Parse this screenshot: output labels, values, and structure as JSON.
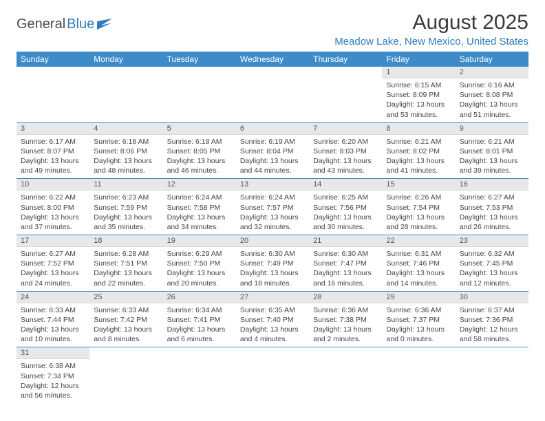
{
  "logo": {
    "text1": "General",
    "text2": "Blue"
  },
  "title": "August 2025",
  "location": "Meadow Lake, New Mexico, United States",
  "colors": {
    "header_bg": "#3d8bc9",
    "header_text": "#ffffff",
    "daynum_bg": "#e8e8e8",
    "accent": "#2e7cc0",
    "body_text": "#444444"
  },
  "day_labels": [
    "Sunday",
    "Monday",
    "Tuesday",
    "Wednesday",
    "Thursday",
    "Friday",
    "Saturday"
  ],
  "weeks": [
    [
      null,
      null,
      null,
      null,
      null,
      {
        "n": "1",
        "sr": "Sunrise: 6:15 AM",
        "ss": "Sunset: 8:09 PM",
        "dl": "Daylight: 13 hours and 53 minutes."
      },
      {
        "n": "2",
        "sr": "Sunrise: 6:16 AM",
        "ss": "Sunset: 8:08 PM",
        "dl": "Daylight: 13 hours and 51 minutes."
      }
    ],
    [
      {
        "n": "3",
        "sr": "Sunrise: 6:17 AM",
        "ss": "Sunset: 8:07 PM",
        "dl": "Daylight: 13 hours and 49 minutes."
      },
      {
        "n": "4",
        "sr": "Sunrise: 6:18 AM",
        "ss": "Sunset: 8:06 PM",
        "dl": "Daylight: 13 hours and 48 minutes."
      },
      {
        "n": "5",
        "sr": "Sunrise: 6:18 AM",
        "ss": "Sunset: 8:05 PM",
        "dl": "Daylight: 13 hours and 46 minutes."
      },
      {
        "n": "6",
        "sr": "Sunrise: 6:19 AM",
        "ss": "Sunset: 8:04 PM",
        "dl": "Daylight: 13 hours and 44 minutes."
      },
      {
        "n": "7",
        "sr": "Sunrise: 6:20 AM",
        "ss": "Sunset: 8:03 PM",
        "dl": "Daylight: 13 hours and 43 minutes."
      },
      {
        "n": "8",
        "sr": "Sunrise: 6:21 AM",
        "ss": "Sunset: 8:02 PM",
        "dl": "Daylight: 13 hours and 41 minutes."
      },
      {
        "n": "9",
        "sr": "Sunrise: 6:21 AM",
        "ss": "Sunset: 8:01 PM",
        "dl": "Daylight: 13 hours and 39 minutes."
      }
    ],
    [
      {
        "n": "10",
        "sr": "Sunrise: 6:22 AM",
        "ss": "Sunset: 8:00 PM",
        "dl": "Daylight: 13 hours and 37 minutes."
      },
      {
        "n": "11",
        "sr": "Sunrise: 6:23 AM",
        "ss": "Sunset: 7:59 PM",
        "dl": "Daylight: 13 hours and 35 minutes."
      },
      {
        "n": "12",
        "sr": "Sunrise: 6:24 AM",
        "ss": "Sunset: 7:58 PM",
        "dl": "Daylight: 13 hours and 34 minutes."
      },
      {
        "n": "13",
        "sr": "Sunrise: 6:24 AM",
        "ss": "Sunset: 7:57 PM",
        "dl": "Daylight: 13 hours and 32 minutes."
      },
      {
        "n": "14",
        "sr": "Sunrise: 6:25 AM",
        "ss": "Sunset: 7:56 PM",
        "dl": "Daylight: 13 hours and 30 minutes."
      },
      {
        "n": "15",
        "sr": "Sunrise: 6:26 AM",
        "ss": "Sunset: 7:54 PM",
        "dl": "Daylight: 13 hours and 28 minutes."
      },
      {
        "n": "16",
        "sr": "Sunrise: 6:27 AM",
        "ss": "Sunset: 7:53 PM",
        "dl": "Daylight: 13 hours and 26 minutes."
      }
    ],
    [
      {
        "n": "17",
        "sr": "Sunrise: 6:27 AM",
        "ss": "Sunset: 7:52 PM",
        "dl": "Daylight: 13 hours and 24 minutes."
      },
      {
        "n": "18",
        "sr": "Sunrise: 6:28 AM",
        "ss": "Sunset: 7:51 PM",
        "dl": "Daylight: 13 hours and 22 minutes."
      },
      {
        "n": "19",
        "sr": "Sunrise: 6:29 AM",
        "ss": "Sunset: 7:50 PM",
        "dl": "Daylight: 13 hours and 20 minutes."
      },
      {
        "n": "20",
        "sr": "Sunrise: 6:30 AM",
        "ss": "Sunset: 7:49 PM",
        "dl": "Daylight: 13 hours and 18 minutes."
      },
      {
        "n": "21",
        "sr": "Sunrise: 6:30 AM",
        "ss": "Sunset: 7:47 PM",
        "dl": "Daylight: 13 hours and 16 minutes."
      },
      {
        "n": "22",
        "sr": "Sunrise: 6:31 AM",
        "ss": "Sunset: 7:46 PM",
        "dl": "Daylight: 13 hours and 14 minutes."
      },
      {
        "n": "23",
        "sr": "Sunrise: 6:32 AM",
        "ss": "Sunset: 7:45 PM",
        "dl": "Daylight: 13 hours and 12 minutes."
      }
    ],
    [
      {
        "n": "24",
        "sr": "Sunrise: 6:33 AM",
        "ss": "Sunset: 7:44 PM",
        "dl": "Daylight: 13 hours and 10 minutes."
      },
      {
        "n": "25",
        "sr": "Sunrise: 6:33 AM",
        "ss": "Sunset: 7:42 PM",
        "dl": "Daylight: 13 hours and 8 minutes."
      },
      {
        "n": "26",
        "sr": "Sunrise: 6:34 AM",
        "ss": "Sunset: 7:41 PM",
        "dl": "Daylight: 13 hours and 6 minutes."
      },
      {
        "n": "27",
        "sr": "Sunrise: 6:35 AM",
        "ss": "Sunset: 7:40 PM",
        "dl": "Daylight: 13 hours and 4 minutes."
      },
      {
        "n": "28",
        "sr": "Sunrise: 6:36 AM",
        "ss": "Sunset: 7:38 PM",
        "dl": "Daylight: 13 hours and 2 minutes."
      },
      {
        "n": "29",
        "sr": "Sunrise: 6:36 AM",
        "ss": "Sunset: 7:37 PM",
        "dl": "Daylight: 13 hours and 0 minutes."
      },
      {
        "n": "30",
        "sr": "Sunrise: 6:37 AM",
        "ss": "Sunset: 7:36 PM",
        "dl": "Daylight: 12 hours and 58 minutes."
      }
    ],
    [
      {
        "n": "31",
        "sr": "Sunrise: 6:38 AM",
        "ss": "Sunset: 7:34 PM",
        "dl": "Daylight: 12 hours and 56 minutes."
      },
      null,
      null,
      null,
      null,
      null,
      null
    ]
  ]
}
